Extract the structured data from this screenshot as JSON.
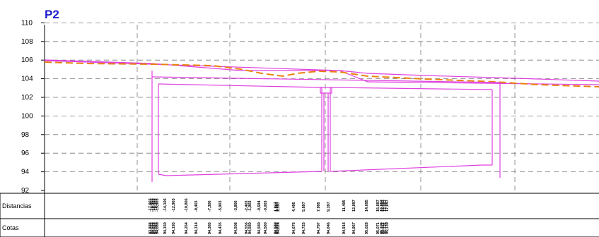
{
  "title": "P2",
  "y_axis": {
    "ticks": [
      "92",
      "94",
      "96",
      "98",
      "100",
      "102",
      "104",
      "106",
      "108",
      "110"
    ]
  },
  "table": {
    "row_labels": [
      "Distancias",
      "Cotas"
    ],
    "distancias": [
      "-17,903",
      "-16,903",
      "-16,403",
      "-16,303",
      "-15,903",
      "-14,106",
      "-12,903",
      "-10,806",
      "-9,403",
      "-7,306",
      "-5,903",
      "-3,806",
      "-2,403",
      "-1,903",
      "-0,684",
      "-0,003",
      "1,017",
      "1,097",
      "2,597",
      "4,495",
      "5,897",
      "7,995",
      "9,397",
      "11,495",
      "12,897",
      "14,695",
      "15,897",
      "16,897",
      "17,097",
      "17,497",
      "17,897"
    ],
    "cotas": [
      "93,888",
      "94,023",
      "94,075",
      "94,083",
      "94,089",
      "94,150",
      "94,193",
      "94,264",
      "94,314",
      "94,385",
      "94,435",
      "94,508",
      "94,556",
      "94,580",
      "94,580",
      "94,580",
      "94,580",
      "94,593",
      "94,624",
      "94,676",
      "94,725",
      "94,797",
      "94,846",
      "94,918",
      "94,967",
      "95,028",
      "95,071",
      "95,105",
      "95,112",
      "95,126",
      "95,139"
    ]
  },
  "colors": {
    "terrain": "#e040e0",
    "ground_line": "#e8820c",
    "title": "#1c1ccc",
    "grid": "#777777"
  }
}
